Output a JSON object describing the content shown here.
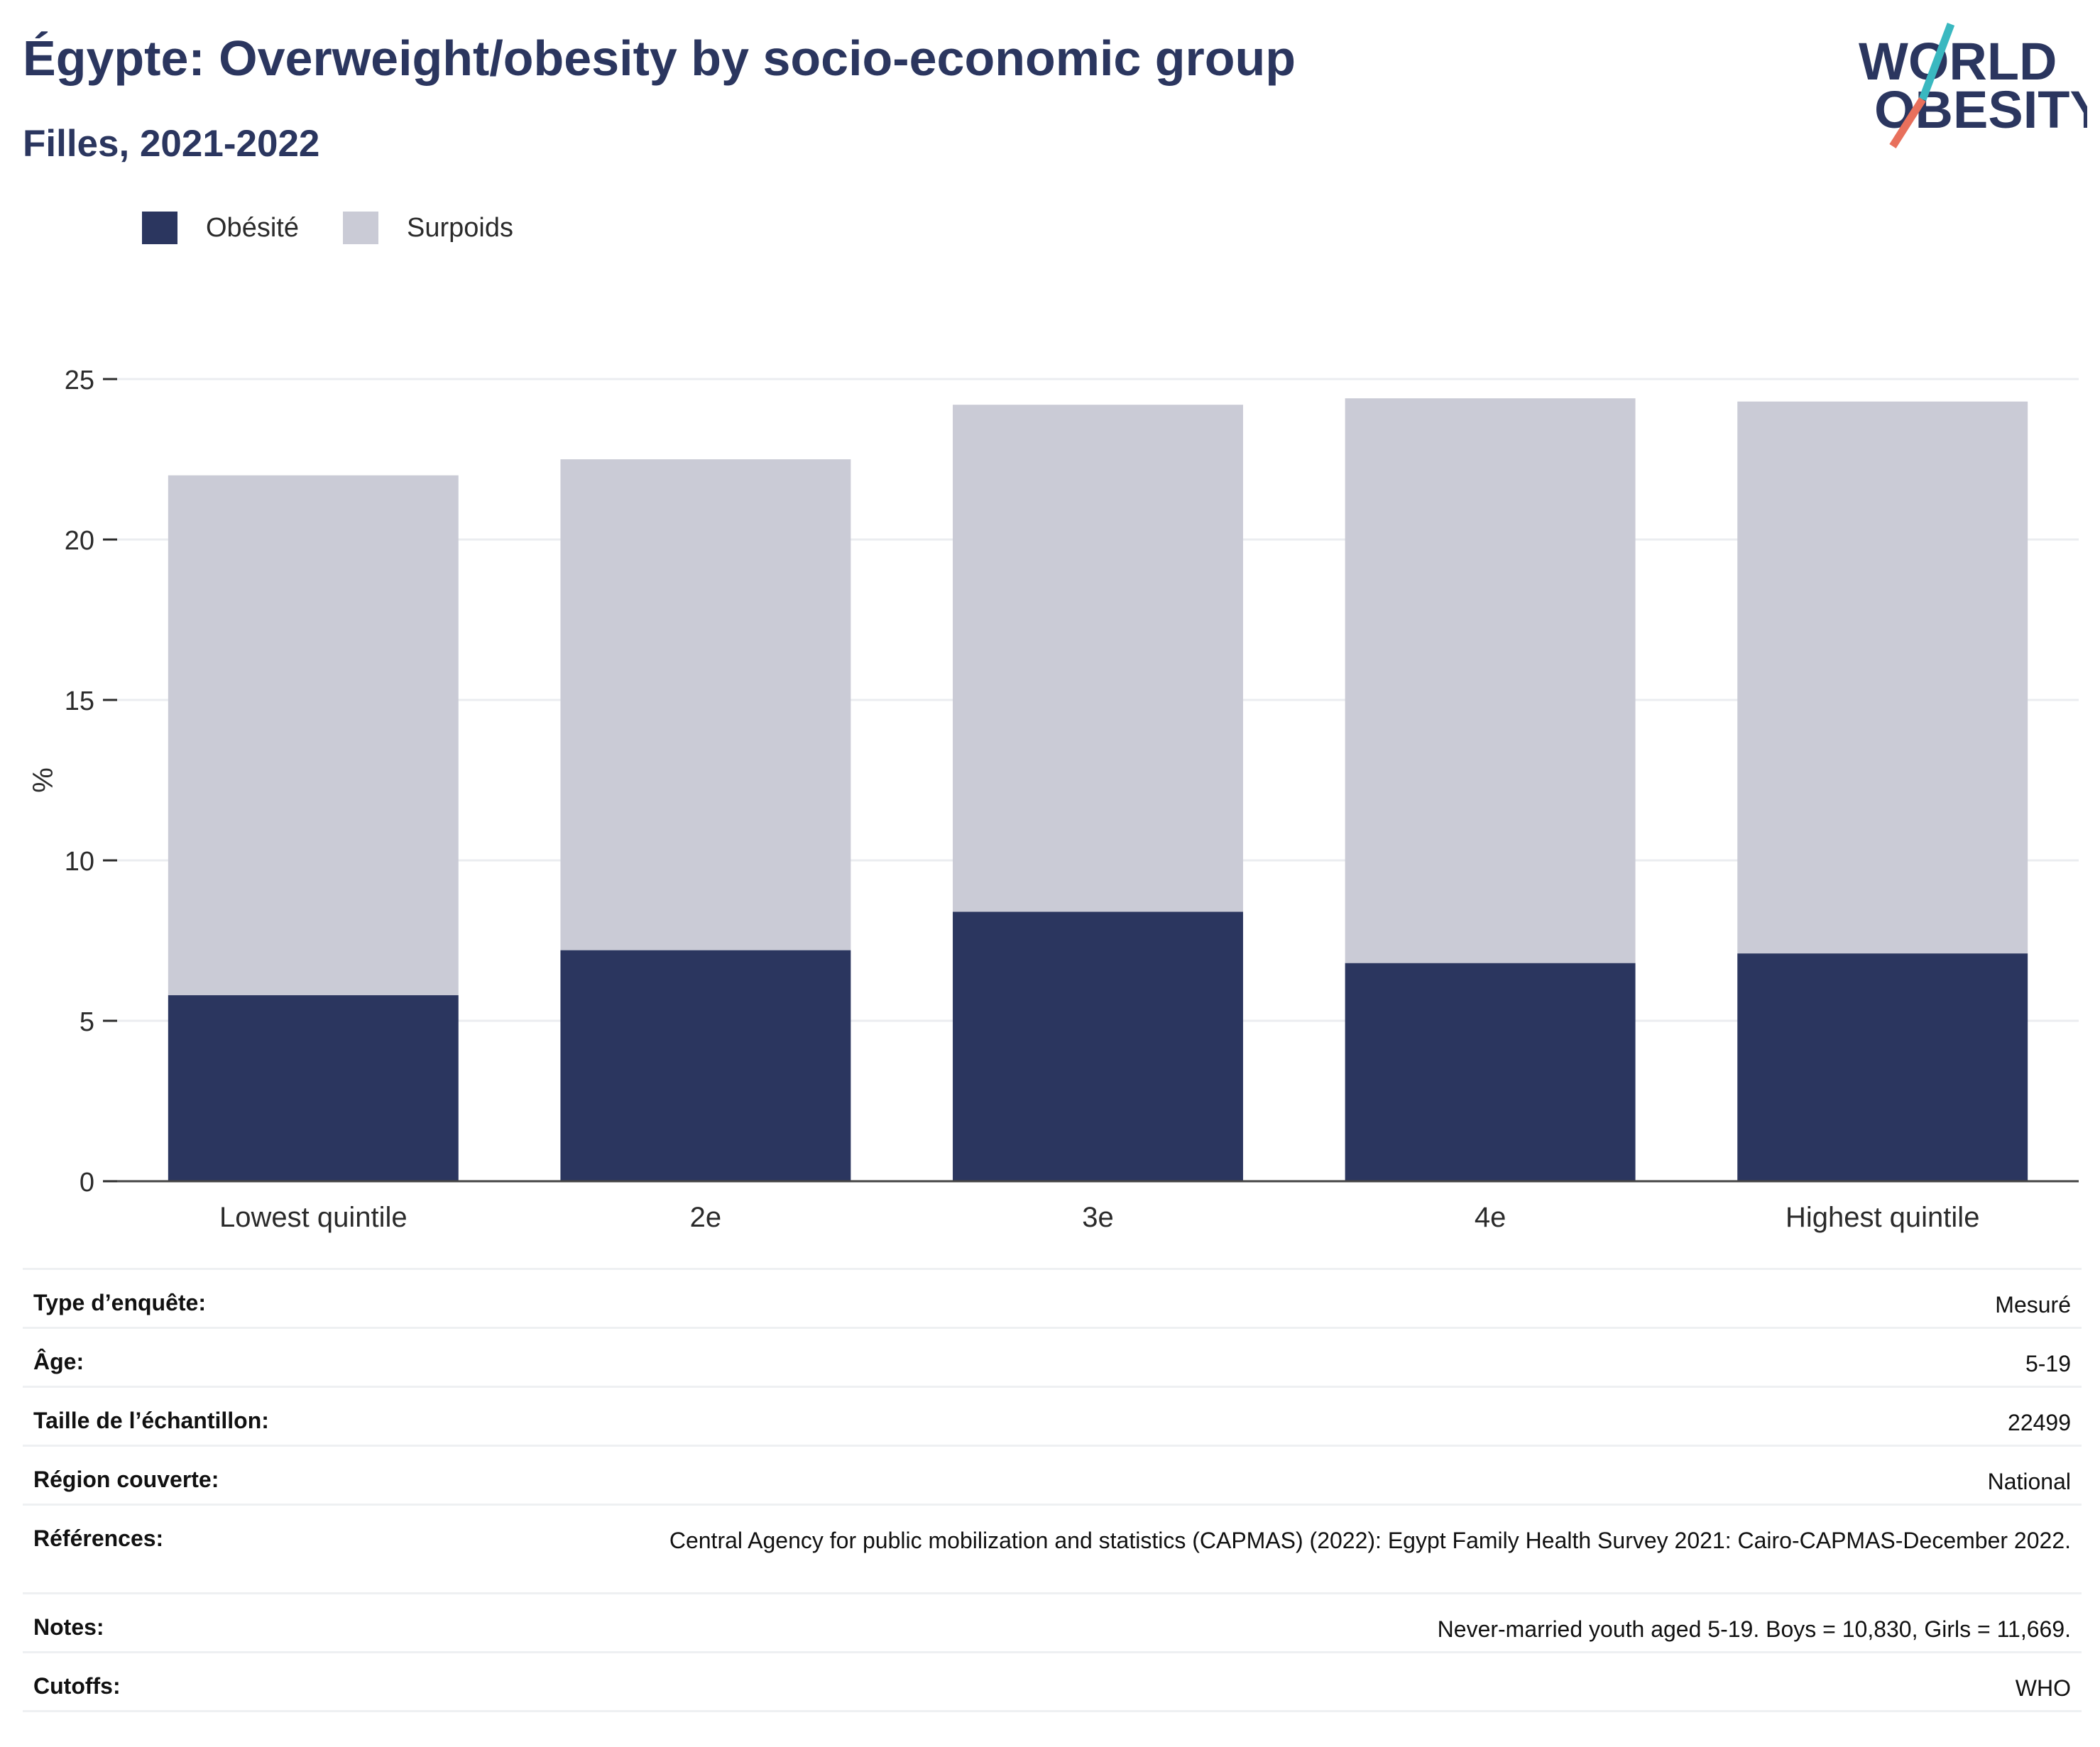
{
  "header": {
    "title": "Égypte: Overweight/obesity by socio-economic group",
    "subtitle": "Filles, 2021-2022"
  },
  "logo": {
    "line1": "WORLD",
    "line2": "OBESITY",
    "colors": {
      "text": "#2b365f",
      "slash_top": "#3ab8c0",
      "slash_bottom": "#e8705c"
    }
  },
  "chart_data": {
    "type": "bar",
    "stacked": true,
    "categories": [
      "Lowest quintile",
      "2e",
      "3e",
      "4e",
      "Highest quintile"
    ],
    "series": [
      {
        "name": "Obésité",
        "color": "#2b365f",
        "values": [
          5.8,
          7.2,
          8.4,
          6.8,
          7.1
        ]
      },
      {
        "name": "Surpoids",
        "color": "#cacbd6",
        "values": [
          16.2,
          15.3,
          15.8,
          17.6,
          17.2
        ]
      }
    ],
    "ylabel": "%",
    "ylim": [
      0,
      25
    ],
    "yticks": [
      0,
      5,
      10,
      15,
      20,
      25
    ],
    "grid": true,
    "legend": "top-left"
  },
  "info_table": [
    {
      "label": "Type d’enquête:",
      "value": "Mesuré"
    },
    {
      "label": "Âge:",
      "value": "5-19"
    },
    {
      "label": "Taille de l’échantillon:",
      "value": "22499"
    },
    {
      "label": "Région couverte:",
      "value": "National"
    },
    {
      "label": "Références:",
      "value": "Central Agency for public mobilization and statistics (CAPMAS) (2022): Egypt Family Health Survey 2021: Cairo-CAPMAS-December 2022."
    },
    {
      "label": "Notes:",
      "value": "Never-married youth aged 5-19. Boys = 10,830, Girls = 11,669."
    },
    {
      "label": "Cutoffs:",
      "value": "WHO"
    }
  ]
}
